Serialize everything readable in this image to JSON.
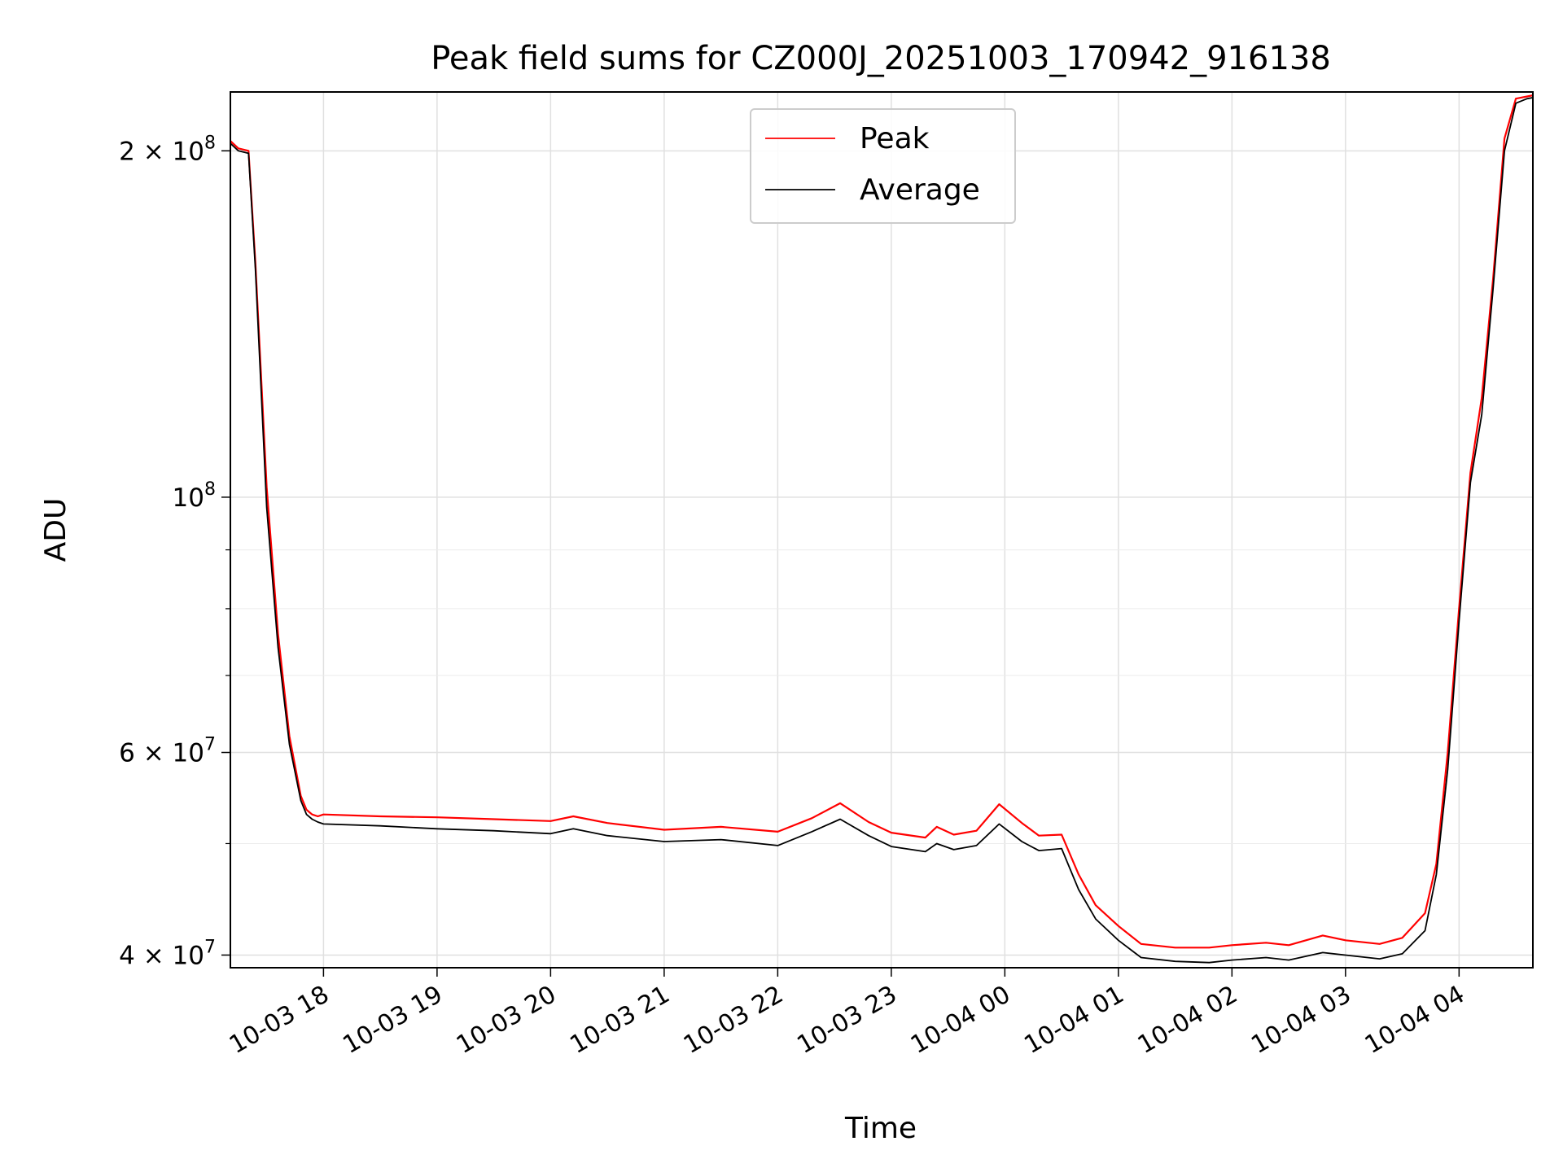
{
  "chart_data": {
    "type": "line",
    "title": "Peak field sums for CZ000J_20251003_170942_916138",
    "xlabel": "Time",
    "ylabel": "ADU",
    "yscale": "log",
    "ylim": [
      39000000,
      225000000
    ],
    "xlim_hours": [
      17.18,
      28.65
    ],
    "grid": true,
    "legend_position": "upper center",
    "x_ticks": [
      {
        "hour": 18,
        "label": "10-03 18"
      },
      {
        "hour": 19,
        "label": "10-03 19"
      },
      {
        "hour": 20,
        "label": "10-03 20"
      },
      {
        "hour": 21,
        "label": "10-03 21"
      },
      {
        "hour": 22,
        "label": "10-03 22"
      },
      {
        "hour": 23,
        "label": "10-03 23"
      },
      {
        "hour": 24,
        "label": "10-04 00"
      },
      {
        "hour": 25,
        "label": "10-04 01"
      },
      {
        "hour": 26,
        "label": "10-04 02"
      },
      {
        "hour": 27,
        "label": "10-04 03"
      },
      {
        "hour": 28,
        "label": "10-04 04"
      }
    ],
    "y_ticks": [
      {
        "value": 40000000,
        "base": "4 × 10",
        "exp": "7"
      },
      {
        "value": 60000000,
        "base": "6 × 10",
        "exp": "7"
      },
      {
        "value": 100000000,
        "base": "10",
        "exp": "8"
      },
      {
        "value": 200000000,
        "base": "2 × 10",
        "exp": "8"
      }
    ],
    "y_minor_ticks": [
      50000000,
      70000000,
      80000000,
      90000000
    ],
    "series": [
      {
        "name": "Peak",
        "color": "#ff0000",
        "x": [
          17.18,
          17.25,
          17.34,
          17.4,
          17.5,
          17.6,
          17.7,
          17.8,
          17.85,
          17.9,
          17.95,
          18.0,
          18.5,
          19.0,
          19.5,
          20.0,
          20.2,
          20.5,
          21.0,
          21.5,
          22.0,
          22.3,
          22.55,
          22.8,
          23.0,
          23.3,
          23.4,
          23.55,
          23.75,
          23.95,
          24.15,
          24.3,
          24.5,
          24.65,
          24.8,
          25.0,
          25.2,
          25.5,
          25.8,
          26.0,
          26.3,
          26.5,
          26.8,
          27.0,
          27.3,
          27.5,
          27.7,
          27.8,
          27.9,
          28.0,
          28.1,
          28.2,
          28.3,
          28.4,
          28.5,
          28.6,
          28.65
        ],
        "values": [
          204000000,
          201000000,
          200000000,
          160000000,
          102000000,
          76000000,
          62000000,
          55000000,
          53500000,
          53000000,
          52800000,
          53000000,
          52800000,
          52700000,
          52500000,
          52300000,
          52800000,
          52100000,
          51400000,
          51700000,
          51200000,
          52600000,
          54200000,
          52200000,
          51100000,
          50600000,
          51700000,
          50900000,
          51300000,
          54100000,
          52100000,
          50800000,
          50900000,
          47000000,
          44200000,
          42400000,
          40900000,
          40600000,
          40600000,
          40800000,
          41000000,
          40800000,
          41600000,
          41200000,
          40900000,
          41400000,
          43500000,
          48000000,
          60000000,
          80000000,
          105000000,
          122000000,
          155000000,
          205000000,
          222000000,
          223000000,
          223500000
        ]
      },
      {
        "name": "Average",
        "color": "#000000",
        "x": [
          17.18,
          17.25,
          17.34,
          17.4,
          17.5,
          17.6,
          17.7,
          17.8,
          17.85,
          17.9,
          17.95,
          18.0,
          18.5,
          19.0,
          19.5,
          20.0,
          20.2,
          20.5,
          21.0,
          21.5,
          22.0,
          22.3,
          22.55,
          22.8,
          23.0,
          23.3,
          23.4,
          23.55,
          23.75,
          23.95,
          24.15,
          24.3,
          24.5,
          24.65,
          24.8,
          25.0,
          25.2,
          25.5,
          25.8,
          26.0,
          26.3,
          26.5,
          26.8,
          27.0,
          27.3,
          27.5,
          27.7,
          27.8,
          27.9,
          28.0,
          28.1,
          28.2,
          28.3,
          28.4,
          28.5,
          28.6,
          28.65
        ],
        "values": [
          203000000,
          200000000,
          199000000,
          158000000,
          98000000,
          74000000,
          61000000,
          54500000,
          53000000,
          52500000,
          52200000,
          52000000,
          51800000,
          51500000,
          51300000,
          51000000,
          51500000,
          50800000,
          50200000,
          50400000,
          49800000,
          51200000,
          52500000,
          50800000,
          49700000,
          49200000,
          50000000,
          49400000,
          49800000,
          52000000,
          50200000,
          49300000,
          49500000,
          45600000,
          43000000,
          41200000,
          39800000,
          39500000,
          39400000,
          39600000,
          39800000,
          39600000,
          40200000,
          40000000,
          39700000,
          40100000,
          42000000,
          47000000,
          58000000,
          78000000,
          103000000,
          118000000,
          152000000,
          200000000,
          220000000,
          222000000,
          222500000
        ]
      }
    ]
  }
}
